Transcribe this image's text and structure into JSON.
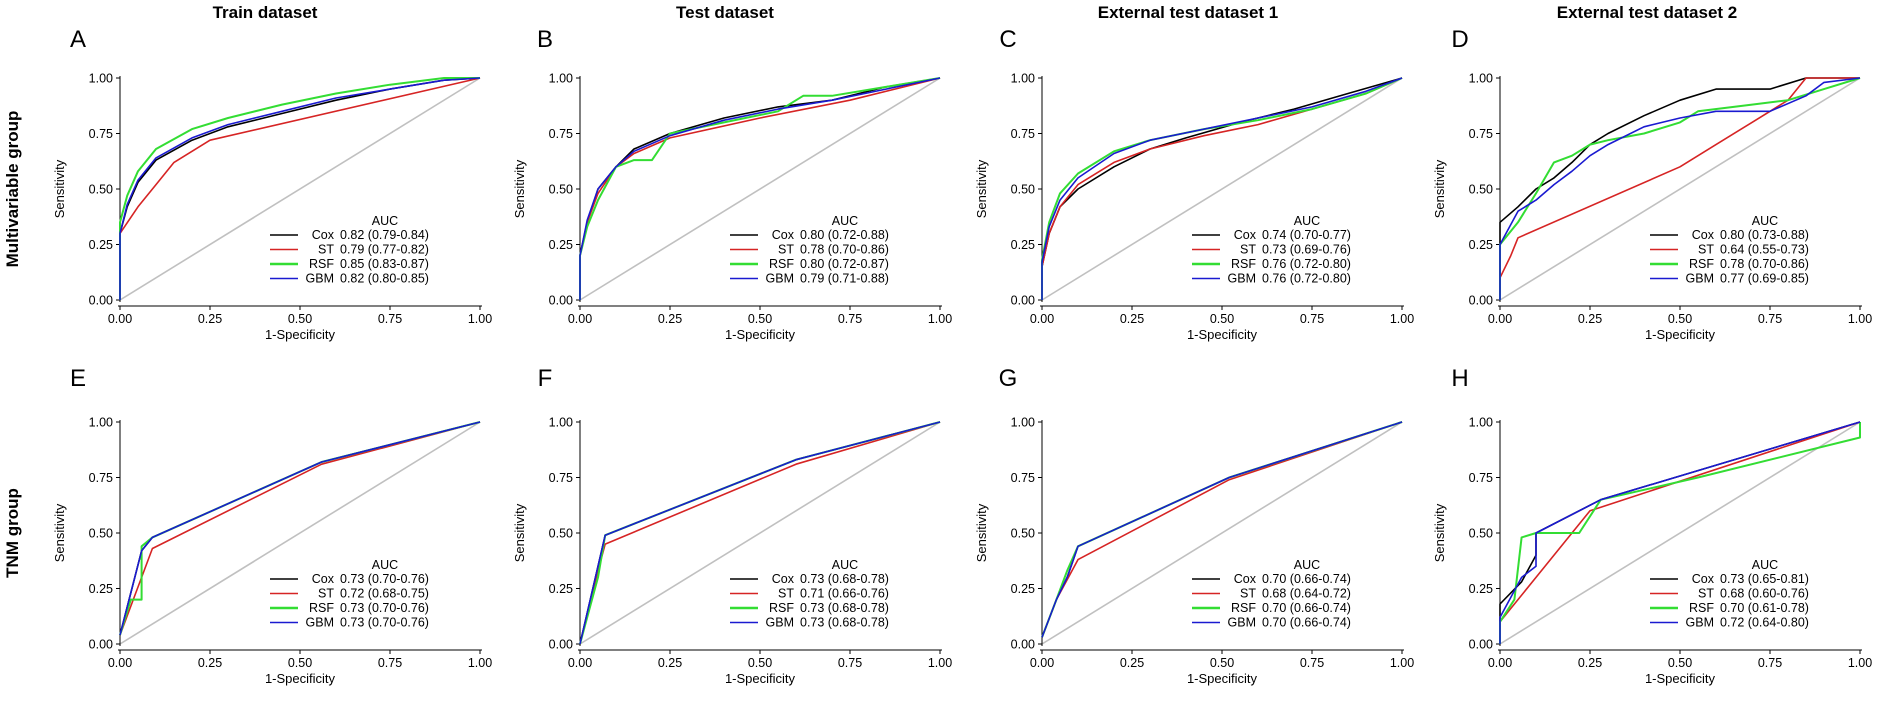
{
  "columns": [
    "Train dataset",
    "Test dataset",
    "External test dataset 1",
    "External test dataset 2"
  ],
  "rows": [
    "Multivariable group",
    "TNM group"
  ],
  "series_colors": {
    "Cox": "#000000",
    "ST": "#d62424",
    "RSF": "#33dd33",
    "GBM": "#1a1ad0"
  },
  "chart_data": [
    {
      "type": "line",
      "panel": "A",
      "xlabel": "1-Specificity",
      "ylabel": "Sensitivity",
      "xlim": [
        0,
        1
      ],
      "ylim": [
        0,
        1
      ],
      "ticks": [
        "0.00",
        "0.25",
        "0.50",
        "0.75",
        "1.00"
      ],
      "legend_title": "AUC",
      "legend_position": "bottom-right",
      "diagonal": true,
      "series": [
        {
          "name": "Cox",
          "auc": "0.82 (0.79-0.84)",
          "x": [
            0,
            0,
            0.02,
            0.05,
            0.1,
            0.2,
            0.3,
            0.45,
            0.6,
            0.75,
            0.9,
            1
          ],
          "y": [
            0,
            0.3,
            0.42,
            0.53,
            0.63,
            0.72,
            0.78,
            0.84,
            0.9,
            0.95,
            0.99,
            1
          ]
        },
        {
          "name": "ST",
          "auc": "0.79 (0.77-0.82)",
          "x": [
            0,
            0,
            0.05,
            0.1,
            0.15,
            0.25,
            1
          ],
          "y": [
            0,
            0.3,
            0.42,
            0.52,
            0.62,
            0.72,
            1
          ]
        },
        {
          "name": "RSF",
          "auc": "0.85 (0.83-0.87)",
          "x": [
            0,
            0,
            0.02,
            0.05,
            0.1,
            0.2,
            0.3,
            0.45,
            0.6,
            0.75,
            0.9,
            1
          ],
          "y": [
            0,
            0.35,
            0.47,
            0.58,
            0.68,
            0.77,
            0.82,
            0.88,
            0.93,
            0.97,
            1,
            1
          ]
        },
        {
          "name": "GBM",
          "auc": "0.82 (0.80-0.85)",
          "x": [
            0,
            0,
            0.02,
            0.05,
            0.1,
            0.2,
            0.3,
            0.45,
            0.6,
            0.75,
            0.9,
            1
          ],
          "y": [
            0,
            0.3,
            0.43,
            0.54,
            0.64,
            0.73,
            0.79,
            0.85,
            0.91,
            0.95,
            0.99,
            1
          ]
        }
      ]
    },
    {
      "type": "line",
      "panel": "B",
      "xlabel": "1-Specificity",
      "ylabel": "Sensitivity",
      "xlim": [
        0,
        1
      ],
      "ylim": [
        0,
        1
      ],
      "ticks": [
        "0.00",
        "0.25",
        "0.50",
        "0.75",
        "1.00"
      ],
      "legend_title": "AUC",
      "legend_position": "bottom-right",
      "diagonal": true,
      "series": [
        {
          "name": "Cox",
          "auc": "0.80 (0.72-0.88)",
          "x": [
            0,
            0,
            0.02,
            0.05,
            0.1,
            0.15,
            0.25,
            0.4,
            0.55,
            0.7,
            0.85,
            1
          ],
          "y": [
            0,
            0.2,
            0.35,
            0.5,
            0.6,
            0.68,
            0.75,
            0.82,
            0.87,
            0.9,
            0.96,
            1
          ]
        },
        {
          "name": "ST",
          "auc": "0.78 (0.70-0.86)",
          "x": [
            0,
            0,
            0.02,
            0.05,
            0.1,
            0.15,
            0.25,
            0.5,
            0.75,
            1
          ],
          "y": [
            0,
            0.2,
            0.35,
            0.48,
            0.6,
            0.66,
            0.73,
            0.82,
            0.9,
            1
          ]
        },
        {
          "name": "RSF",
          "auc": "0.80 (0.72-0.87)",
          "x": [
            0,
            0,
            0.02,
            0.05,
            0.1,
            0.15,
            0.2,
            0.25,
            0.4,
            0.55,
            0.62,
            0.7,
            0.85,
            1
          ],
          "y": [
            0,
            0.2,
            0.33,
            0.45,
            0.6,
            0.63,
            0.63,
            0.75,
            0.8,
            0.85,
            0.92,
            0.92,
            0.96,
            1
          ]
        },
        {
          "name": "GBM",
          "auc": "0.79 (0.71-0.88)",
          "x": [
            0,
            0,
            0.02,
            0.05,
            0.1,
            0.15,
            0.25,
            0.4,
            0.55,
            0.7,
            0.85,
            1
          ],
          "y": [
            0,
            0.2,
            0.36,
            0.5,
            0.6,
            0.67,
            0.74,
            0.81,
            0.86,
            0.9,
            0.95,
            1
          ]
        }
      ]
    },
    {
      "type": "line",
      "panel": "C",
      "xlabel": "1-Specificity",
      "ylabel": "Sensitivity",
      "xlim": [
        0,
        1
      ],
      "ylim": [
        0,
        1
      ],
      "ticks": [
        "0.00",
        "0.25",
        "0.50",
        "0.75",
        "1.00"
      ],
      "legend_title": "AUC",
      "legend_position": "bottom-right",
      "diagonal": true,
      "series": [
        {
          "name": "Cox",
          "auc": "0.74 (0.70-0.77)",
          "x": [
            0,
            0,
            0.02,
            0.05,
            0.1,
            0.2,
            0.3,
            0.4,
            0.55,
            0.7,
            0.85,
            1
          ],
          "y": [
            0,
            0.15,
            0.3,
            0.42,
            0.5,
            0.6,
            0.68,
            0.73,
            0.8,
            0.86,
            0.93,
            1
          ]
        },
        {
          "name": "ST",
          "auc": "0.73 (0.69-0.76)",
          "x": [
            0,
            0,
            0.02,
            0.05,
            0.1,
            0.2,
            0.3,
            0.45,
            0.6,
            0.75,
            0.9,
            1
          ],
          "y": [
            0,
            0.15,
            0.3,
            0.42,
            0.52,
            0.62,
            0.68,
            0.74,
            0.79,
            0.86,
            0.93,
            1
          ]
        },
        {
          "name": "RSF",
          "auc": "0.76 (0.72-0.80)",
          "x": [
            0,
            0,
            0.02,
            0.05,
            0.1,
            0.2,
            0.3,
            0.45,
            0.6,
            0.75,
            0.9,
            1
          ],
          "y": [
            0,
            0.18,
            0.35,
            0.48,
            0.57,
            0.67,
            0.72,
            0.77,
            0.81,
            0.86,
            0.93,
            1
          ]
        },
        {
          "name": "GBM",
          "auc": "0.76 (0.72-0.80)",
          "x": [
            0,
            0,
            0.02,
            0.05,
            0.1,
            0.2,
            0.3,
            0.45,
            0.6,
            0.75,
            0.9,
            1
          ],
          "y": [
            0,
            0.17,
            0.33,
            0.45,
            0.55,
            0.66,
            0.72,
            0.77,
            0.82,
            0.87,
            0.94,
            1
          ]
        }
      ]
    },
    {
      "type": "line",
      "panel": "D",
      "xlabel": "1-Specificity",
      "ylabel": "Sensitivity",
      "xlim": [
        0,
        1
      ],
      "ylim": [
        0,
        1
      ],
      "ticks": [
        "0.00",
        "0.25",
        "0.50",
        "0.75",
        "1.00"
      ],
      "legend_title": "AUC",
      "legend_position": "bottom-right",
      "diagonal": true,
      "series": [
        {
          "name": "Cox",
          "auc": "0.80 (0.73-0.88)",
          "x": [
            0,
            0,
            0.05,
            0.1,
            0.15,
            0.2,
            0.25,
            0.3,
            0.4,
            0.5,
            0.6,
            0.75,
            0.85,
            1
          ],
          "y": [
            0,
            0.35,
            0.42,
            0.5,
            0.55,
            0.62,
            0.7,
            0.75,
            0.83,
            0.9,
            0.95,
            0.95,
            1,
            1
          ]
        },
        {
          "name": "ST",
          "auc": "0.64 (0.55-0.73)",
          "x": [
            0,
            0,
            0.03,
            0.05,
            0.5,
            0.6,
            0.7,
            0.8,
            0.85,
            1
          ],
          "y": [
            0,
            0.1,
            0.2,
            0.28,
            0.6,
            0.7,
            0.8,
            0.9,
            1,
            1
          ]
        },
        {
          "name": "RSF",
          "auc": "0.78 (0.70-0.86)",
          "x": [
            0,
            0,
            0.05,
            0.1,
            0.15,
            0.2,
            0.25,
            0.3,
            0.4,
            0.5,
            0.55,
            0.7,
            0.8,
            0.9,
            1
          ],
          "y": [
            0,
            0.25,
            0.35,
            0.48,
            0.62,
            0.65,
            0.7,
            0.72,
            0.75,
            0.8,
            0.85,
            0.88,
            0.9,
            0.95,
            1
          ]
        },
        {
          "name": "GBM",
          "auc": "0.77 (0.69-0.85)",
          "x": [
            0,
            0,
            0.05,
            0.1,
            0.15,
            0.2,
            0.25,
            0.3,
            0.4,
            0.5,
            0.6,
            0.75,
            0.85,
            0.9,
            1
          ],
          "y": [
            0,
            0.25,
            0.4,
            0.45,
            0.52,
            0.58,
            0.65,
            0.7,
            0.78,
            0.82,
            0.85,
            0.85,
            0.92,
            0.98,
            1
          ]
        }
      ]
    },
    {
      "type": "line",
      "panel": "E",
      "xlabel": "1-Specificity",
      "ylabel": "Sensitivity",
      "xlim": [
        0,
        1
      ],
      "ylim": [
        0,
        1
      ],
      "ticks": [
        "0.00",
        "0.25",
        "0.50",
        "0.75",
        "1.00"
      ],
      "legend_title": "AUC",
      "legend_position": "bottom-right",
      "diagonal": true,
      "series": [
        {
          "name": "Cox",
          "auc": "0.73 (0.70-0.76)",
          "x": [
            0,
            0.06,
            0.09,
            0.56,
            1
          ],
          "y": [
            0.04,
            0.42,
            0.48,
            0.82,
            1
          ]
        },
        {
          "name": "ST",
          "auc": "0.72 (0.68-0.75)",
          "x": [
            0,
            0.09,
            0.56,
            1
          ],
          "y": [
            0.04,
            0.43,
            0.81,
            1
          ]
        },
        {
          "name": "RSF",
          "auc": "0.73 (0.70-0.76)",
          "x": [
            0,
            0.03,
            0.06,
            0.06,
            0.09,
            0.56,
            1
          ],
          "y": [
            0.04,
            0.2,
            0.2,
            0.44,
            0.48,
            0.82,
            1
          ]
        },
        {
          "name": "GBM",
          "auc": "0.73 (0.70-0.76)",
          "x": [
            0,
            0.06,
            0.09,
            0.56,
            1
          ],
          "y": [
            0.04,
            0.42,
            0.48,
            0.82,
            1
          ]
        }
      ]
    },
    {
      "type": "line",
      "panel": "F",
      "xlabel": "1-Specificity",
      "ylabel": "Sensitivity",
      "xlim": [
        0,
        1
      ],
      "ylim": [
        0,
        1
      ],
      "ticks": [
        "0.00",
        "0.25",
        "0.50",
        "0.75",
        "1.00"
      ],
      "legend_title": "AUC",
      "legend_position": "bottom-right",
      "diagonal": true,
      "series": [
        {
          "name": "Cox",
          "auc": "0.73 (0.68-0.78)",
          "x": [
            0,
            0.05,
            0.07,
            0.6,
            1
          ],
          "y": [
            0,
            0.35,
            0.49,
            0.83,
            1
          ]
        },
        {
          "name": "ST",
          "auc": "0.71 (0.66-0.76)",
          "x": [
            0,
            0.05,
            0.07,
            0.6,
            1
          ],
          "y": [
            0,
            0.33,
            0.45,
            0.81,
            1
          ]
        },
        {
          "name": "RSF",
          "auc": "0.73 (0.68-0.78)",
          "x": [
            0,
            0.05,
            0.07,
            0.6,
            1
          ],
          "y": [
            0,
            0.3,
            0.49,
            0.83,
            1
          ]
        },
        {
          "name": "GBM",
          "auc": "0.73 (0.68-0.78)",
          "x": [
            0,
            0.05,
            0.07,
            0.6,
            1
          ],
          "y": [
            0,
            0.35,
            0.49,
            0.83,
            1
          ]
        }
      ]
    },
    {
      "type": "line",
      "panel": "G",
      "xlabel": "1-Specificity",
      "ylabel": "Sensitivity",
      "xlim": [
        0,
        1
      ],
      "ylim": [
        0,
        1
      ],
      "ticks": [
        "0.00",
        "0.25",
        "0.50",
        "0.75",
        "1.00"
      ],
      "legend_title": "AUC",
      "legend_position": "bottom-right",
      "diagonal": true,
      "series": [
        {
          "name": "Cox",
          "auc": "0.70 (0.66-0.74)",
          "x": [
            0,
            0.04,
            0.07,
            0.1,
            0.52,
            1
          ],
          "y": [
            0.03,
            0.2,
            0.3,
            0.44,
            0.75,
            1
          ]
        },
        {
          "name": "ST",
          "auc": "0.68 (0.64-0.72)",
          "x": [
            0,
            0.04,
            0.1,
            0.52,
            1
          ],
          "y": [
            0.03,
            0.2,
            0.38,
            0.74,
            1
          ]
        },
        {
          "name": "RSF",
          "auc": "0.70 (0.66-0.74)",
          "x": [
            0,
            0.04,
            0.07,
            0.1,
            0.52,
            1
          ],
          "y": [
            0.03,
            0.2,
            0.33,
            0.44,
            0.75,
            1
          ]
        },
        {
          "name": "GBM",
          "auc": "0.70 (0.66-0.74)",
          "x": [
            0,
            0.04,
            0.07,
            0.1,
            0.52,
            1
          ],
          "y": [
            0.03,
            0.2,
            0.3,
            0.44,
            0.75,
            1
          ]
        }
      ]
    },
    {
      "type": "line",
      "panel": "H",
      "xlabel": "1-Specificity",
      "ylabel": "Sensitivity",
      "xlim": [
        0,
        1
      ],
      "ylim": [
        0,
        1
      ],
      "ticks": [
        "0.00",
        "0.25",
        "0.50",
        "0.75",
        "1.00"
      ],
      "legend_title": "AUC",
      "legend_position": "bottom-right",
      "diagonal": true,
      "series": [
        {
          "name": "Cox",
          "auc": "0.73 (0.65-0.81)",
          "x": [
            0,
            0,
            0.06,
            0.1,
            0.1,
            0.28,
            1
          ],
          "y": [
            0,
            0.18,
            0.28,
            0.4,
            0.5,
            0.65,
            1
          ]
        },
        {
          "name": "ST",
          "auc": "0.68 (0.60-0.76)",
          "x": [
            0,
            0,
            0.1,
            0.25,
            1
          ],
          "y": [
            0,
            0.1,
            0.3,
            0.6,
            1
          ]
        },
        {
          "name": "RSF",
          "auc": "0.70 (0.61-0.78)",
          "x": [
            0,
            0,
            0.04,
            0.06,
            0.1,
            0.22,
            0.28,
            0.55,
            1,
            1
          ],
          "y": [
            0,
            0.1,
            0.2,
            0.48,
            0.5,
            0.5,
            0.65,
            0.75,
            0.93,
            1
          ]
        },
        {
          "name": "GBM",
          "auc": "0.72 (0.64-0.80)",
          "x": [
            0,
            0,
            0.06,
            0.1,
            0.1,
            0.28,
            1
          ],
          "y": [
            0,
            0.12,
            0.3,
            0.35,
            0.5,
            0.65,
            1
          ]
        }
      ]
    }
  ]
}
